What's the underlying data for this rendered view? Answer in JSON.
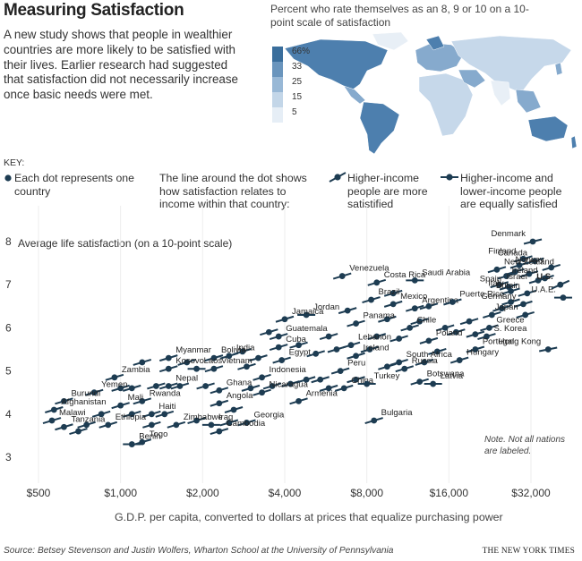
{
  "title": "Measuring Satisfaction",
  "intro": "A new study shows that people in wealthier countries are more likely to be satisfied with their lives. Earlier research had suggested that satisfaction did not necessarily increase once basic needs were met.",
  "map": {
    "caption": "Percent who rate themselves as an 8, 9 or 10 on a 10-point scale of satisfaction",
    "legend": [
      {
        "label": "66%",
        "color": "#3a6e9c"
      },
      {
        "label": "33",
        "color": "#6a95bd"
      },
      {
        "label": "25",
        "color": "#98b8d6"
      },
      {
        "label": "15",
        "color": "#c3d6e8"
      },
      {
        "label": "5",
        "color": "#e6eef6"
      }
    ],
    "colors": {
      "land_dark": "#4d7fae",
      "land_mid": "#86aacd",
      "land_light": "#c6d8ea",
      "land_pale": "#e8eff6"
    }
  },
  "key": {
    "heading": "KEY:",
    "dot": "Each dot represents one country",
    "line": "The line around the dot shows how satisfaction relates to income within that country:",
    "steep": "Higher-income people are more satistified",
    "flat": "Higher-income and lower-income people are equally satisfied"
  },
  "note": "Note. Not all nations are labeled.",
  "axis_title": "G.D.P. per capita, converted to dollars at prices that equalize purchasing power",
  "source": "Source: Betsey Stevenson and Justin Wolfers, Wharton School at the University of Pennsylvania",
  "credit": "THE NEW YORK TIMES",
  "colors": {
    "dot": "#1d3c52",
    "text": "#222222",
    "accent": "#1d3c52"
  },
  "chart_data": {
    "type": "scatter",
    "title": "Measuring Satisfaction",
    "xlabel": "G.D.P. per capita, converted to dollars at prices that equalize purchasing power",
    "ylabel": "Average life satisfaction (on a 10-point scale)",
    "xscale": "log",
    "xlim": [
      420,
      48000
    ],
    "ylim": [
      2.7,
      8.3
    ],
    "xticks": [
      {
        "value": 500,
        "label": "$500"
      },
      {
        "value": 1000,
        "label": "$1,000"
      },
      {
        "value": 2000,
        "label": "$2,000"
      },
      {
        "value": 4000,
        "label": "$4,000"
      },
      {
        "value": 8000,
        "label": "$8,000"
      },
      {
        "value": 16000,
        "label": "$16,000"
      },
      {
        "value": 32000,
        "label": "$32,000"
      }
    ],
    "yticks": [
      3,
      4,
      5,
      6,
      7,
      8
    ],
    "labeled": [
      {
        "name": "Denmark",
        "x": 32500,
        "y": 8.0,
        "slope": 0.25
      },
      {
        "name": "Finland",
        "x": 30000,
        "y": 7.6,
        "slope": 0.3
      },
      {
        "name": "Canada",
        "x": 33000,
        "y": 7.55,
        "slope": 0.3
      },
      {
        "name": "Norway",
        "x": 38000,
        "y": 7.4,
        "slope": 0.3
      },
      {
        "name": "Ireland",
        "x": 36000,
        "y": 7.15,
        "slope": 0.3
      },
      {
        "name": "U.S.",
        "x": 41000,
        "y": 7.0,
        "slope": 0.45
      },
      {
        "name": "New Zealand",
        "x": 24000,
        "y": 7.35,
        "slope": 0.3
      },
      {
        "name": "Israel",
        "x": 24500,
        "y": 7.0,
        "slope": 0.3
      },
      {
        "name": "Spain",
        "x": 26500,
        "y": 6.95,
        "slope": 0.3
      },
      {
        "name": "Italy",
        "x": 27000,
        "y": 6.85,
        "slope": 0.3
      },
      {
        "name": "Britain",
        "x": 31000,
        "y": 6.8,
        "slope": 0.3
      },
      {
        "name": "Germany",
        "x": 30000,
        "y": 6.55,
        "slope": 0.3
      },
      {
        "name": "Japan",
        "x": 30500,
        "y": 6.3,
        "slope": 0.3
      },
      {
        "name": "U.A.E.",
        "x": 42000,
        "y": 6.7,
        "slope": 0.0
      },
      {
        "name": "Greece",
        "x": 22500,
        "y": 6.0,
        "slope": 0.3
      },
      {
        "name": "S. Korea",
        "x": 22000,
        "y": 5.8,
        "slope": 0.3
      },
      {
        "name": "Portugal",
        "x": 20000,
        "y": 5.5,
        "slope": 0.3
      },
      {
        "name": "Hungary",
        "x": 17500,
        "y": 5.25,
        "slope": 0.3
      },
      {
        "name": "Hong Kong",
        "x": 37000,
        "y": 5.5,
        "slope": 0.2
      },
      {
        "name": "Poland",
        "x": 13500,
        "y": 5.7,
        "slope": 0.3
      },
      {
        "name": "Latvia",
        "x": 14000,
        "y": 4.7,
        "slope": 0.0
      },
      {
        "name": "Russia",
        "x": 11000,
        "y": 5.05,
        "slope": 0.3
      },
      {
        "name": "Botswana",
        "x": 12500,
        "y": 4.75,
        "slope": 0.3
      },
      {
        "name": "South Africa",
        "x": 10500,
        "y": 5.2,
        "slope": 0.3
      },
      {
        "name": "Argentina",
        "x": 12000,
        "y": 6.45,
        "slope": 0.3
      },
      {
        "name": "Chile",
        "x": 11500,
        "y": 6.0,
        "slope": 0.3
      },
      {
        "name": "Puerto Rico",
        "x": 16500,
        "y": 6.6,
        "slope": 0.3
      },
      {
        "name": "Mexico",
        "x": 10000,
        "y": 6.55,
        "slope": 0.3
      },
      {
        "name": "Costa Rica",
        "x": 8700,
        "y": 7.05,
        "slope": 0.3
      },
      {
        "name": "Saudi Arabia",
        "x": 12000,
        "y": 7.1,
        "slope": 0.0
      },
      {
        "name": "Brazil",
        "x": 8300,
        "y": 6.65,
        "slope": 0.3
      },
      {
        "name": "Venezuela",
        "x": 6500,
        "y": 7.2,
        "slope": 0.3
      },
      {
        "name": "Panama",
        "x": 7300,
        "y": 6.1,
        "slope": 0.3
      },
      {
        "name": "Jordan",
        "x": 4800,
        "y": 6.3,
        "slope": 0.0
      },
      {
        "name": "Jamaica",
        "x": 4000,
        "y": 6.2,
        "slope": 0.3
      },
      {
        "name": "Lebanon",
        "x": 7000,
        "y": 5.6,
        "slope": 0.3
      },
      {
        "name": "Ireland",
        "x": 7300,
        "y": 5.35,
        "slope": 0.3
      },
      {
        "name": "Peru",
        "x": 6400,
        "y": 5.0,
        "slope": 0.3
      },
      {
        "name": "China",
        "x": 6600,
        "y": 4.6,
        "slope": 0.3
      },
      {
        "name": "Turkey",
        "x": 8000,
        "y": 4.7,
        "slope": 0.0
      },
      {
        "name": "Bulgaria",
        "x": 8500,
        "y": 3.85,
        "slope": 0.3
      },
      {
        "name": "Armenia",
        "x": 4500,
        "y": 4.3,
        "slope": 0.3
      },
      {
        "name": "Guatemala",
        "x": 3800,
        "y": 5.8,
        "slope": 0.3
      },
      {
        "name": "Cuba",
        "x": 3800,
        "y": 5.55,
        "slope": 0.3
      },
      {
        "name": "Egypt",
        "x": 3900,
        "y": 5.25,
        "slope": 0.3
      },
      {
        "name": "Indonesia",
        "x": 3300,
        "y": 4.85,
        "slope": 0.3
      },
      {
        "name": "Nicaragua",
        "x": 3300,
        "y": 4.5,
        "slope": 0.3
      },
      {
        "name": "Georgia",
        "x": 2900,
        "y": 3.8,
        "slope": 0.3
      },
      {
        "name": "Cambodia",
        "x": 2300,
        "y": 3.6,
        "slope": 0.3
      },
      {
        "name": "Iraq",
        "x": 2150,
        "y": 3.75,
        "slope": 0.0
      },
      {
        "name": "Angola",
        "x": 2300,
        "y": 4.25,
        "slope": 0.3
      },
      {
        "name": "Ghana",
        "x": 2300,
        "y": 4.55,
        "slope": 0.3
      },
      {
        "name": "Vietnam",
        "x": 2200,
        "y": 5.05,
        "slope": 0.3
      },
      {
        "name": "India",
        "x": 2500,
        "y": 5.35,
        "slope": 0.3
      },
      {
        "name": "Bolivia",
        "x": 2200,
        "y": 5.3,
        "slope": 0.3
      },
      {
        "name": "Laos",
        "x": 1900,
        "y": 5.05,
        "slope": 0.0
      },
      {
        "name": "Myanmar",
        "x": 1500,
        "y": 5.3,
        "slope": 0.3
      },
      {
        "name": "Kosovo",
        "x": 1500,
        "y": 5.05,
        "slope": 0.3
      },
      {
        "name": "Nepal",
        "x": 1500,
        "y": 4.65,
        "slope": 0.3
      },
      {
        "name": "Rwanda",
        "x": 1200,
        "y": 4.3,
        "slope": 0.3
      },
      {
        "name": "Haiti",
        "x": 1300,
        "y": 4.0,
        "slope": 0.3
      },
      {
        "name": "Zimbabwe",
        "x": 1600,
        "y": 3.75,
        "slope": 0.3
      },
      {
        "name": "Togo",
        "x": 1200,
        "y": 3.35,
        "slope": 0.3
      },
      {
        "name": "Benin",
        "x": 1100,
        "y": 3.3,
        "slope": 0.0
      },
      {
        "name": "Ethiopia",
        "x": 900,
        "y": 3.75,
        "slope": 0.3
      },
      {
        "name": "Mali",
        "x": 1000,
        "y": 4.2,
        "slope": 0.3
      },
      {
        "name": "Zambia",
        "x": 950,
        "y": 4.85,
        "slope": 0.3
      },
      {
        "name": "Yemen",
        "x": 800,
        "y": 4.5,
        "slope": 0.3
      },
      {
        "name": "Burundi",
        "x": 620,
        "y": 4.3,
        "slope": 0.3
      },
      {
        "name": "Afghanistan",
        "x": 570,
        "y": 4.1,
        "slope": 0.3
      },
      {
        "name": "Malawi",
        "x": 560,
        "y": 3.85,
        "slope": 0.3
      },
      {
        "name": "Tanzania",
        "x": 620,
        "y": 3.7,
        "slope": 0.3
      }
    ],
    "unlabeled": [
      {
        "x": 1000,
        "y": 4.6
      },
      {
        "x": 1100,
        "y": 4.6
      },
      {
        "x": 1350,
        "y": 4.65
      },
      {
        "x": 1650,
        "y": 4.65
      },
      {
        "x": 1100,
        "y": 4.0
      },
      {
        "x": 1450,
        "y": 4.0
      },
      {
        "x": 850,
        "y": 4.0
      },
      {
        "x": 750,
        "y": 3.75
      },
      {
        "x": 1300,
        "y": 3.75
      },
      {
        "x": 1900,
        "y": 3.85
      },
      {
        "x": 2500,
        "y": 3.8
      },
      {
        "x": 700,
        "y": 3.6
      },
      {
        "x": 2600,
        "y": 4.1
      },
      {
        "x": 3000,
        "y": 4.6
      },
      {
        "x": 2900,
        "y": 5.1
      },
      {
        "x": 3600,
        "y": 4.65
      },
      {
        "x": 4200,
        "y": 4.7
      },
      {
        "x": 4800,
        "y": 4.8
      },
      {
        "x": 5400,
        "y": 4.8
      },
      {
        "x": 5800,
        "y": 4.6
      },
      {
        "x": 7300,
        "y": 4.8
      },
      {
        "x": 6200,
        "y": 5.5
      },
      {
        "x": 4500,
        "y": 5.6
      },
      {
        "x": 5200,
        "y": 5.4
      },
      {
        "x": 8200,
        "y": 5.5
      },
      {
        "x": 8700,
        "y": 5.8
      },
      {
        "x": 9500,
        "y": 5.1
      },
      {
        "x": 10500,
        "y": 5.75
      },
      {
        "x": 13000,
        "y": 5.2
      },
      {
        "x": 14500,
        "y": 5.45
      },
      {
        "x": 15500,
        "y": 6.0
      },
      {
        "x": 17000,
        "y": 5.9
      },
      {
        "x": 19000,
        "y": 6.15
      },
      {
        "x": 20000,
        "y": 5.85
      },
      {
        "x": 23000,
        "y": 6.3
      },
      {
        "x": 25000,
        "y": 6.45
      },
      {
        "x": 26000,
        "y": 7.2
      },
      {
        "x": 28000,
        "y": 7.3
      },
      {
        "x": 29000,
        "y": 7.45
      },
      {
        "x": 31500,
        "y": 7.25
      },
      {
        "x": 34000,
        "y": 7.1
      },
      {
        "x": 27000,
        "y": 6.6
      },
      {
        "x": 12500,
        "y": 6.15
      },
      {
        "x": 9500,
        "y": 6.2
      },
      {
        "x": 6800,
        "y": 6.4
      },
      {
        "x": 5800,
        "y": 5.8
      },
      {
        "x": 2800,
        "y": 5.45
      },
      {
        "x": 3200,
        "y": 5.3
      },
      {
        "x": 1750,
        "y": 5.2
      },
      {
        "x": 2050,
        "y": 4.65
      },
      {
        "x": 13500,
        "y": 6.5
      },
      {
        "x": 10000,
        "y": 6.8
      },
      {
        "x": 3500,
        "y": 5.9
      },
      {
        "x": 1200,
        "y": 5.2
      }
    ]
  }
}
